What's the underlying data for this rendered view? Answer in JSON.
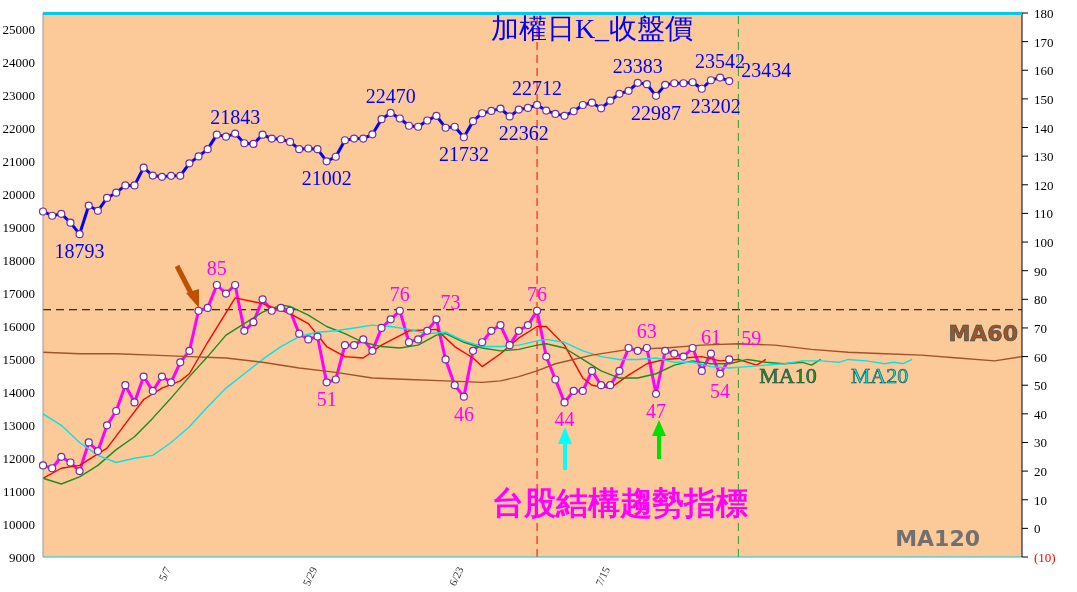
{
  "chart_data": {
    "type": "line",
    "title": "加權日K_收盤價",
    "annotations": [
      "台股結構趨勢指標",
      "MA120"
    ],
    "categories": [
      null,
      null,
      null,
      null,
      null,
      null,
      null,
      null,
      null,
      null,
      null,
      null,
      null,
      null,
      "5/7",
      null,
      null,
      null,
      null,
      null,
      null,
      null,
      null,
      null,
      null,
      null,
      null,
      null,
      null,
      null,
      "5/29",
      null,
      null,
      null,
      null,
      null,
      null,
      null,
      null,
      null,
      null,
      null,
      null,
      null,
      null,
      null,
      "6/23",
      null,
      null,
      null,
      null,
      null,
      null,
      null,
      null,
      null,
      null,
      null,
      null,
      null,
      null,
      null,
      "7/15",
      null,
      null,
      null,
      null,
      null,
      null,
      null,
      null,
      null,
      null,
      null,
      null,
      null,
      null,
      null,
      null,
      null,
      null,
      null,
      null,
      null,
      null,
      null,
      null,
      null,
      null,
      null,
      null,
      null,
      null,
      null,
      null,
      null,
      null,
      null,
      null,
      null,
      null,
      null,
      null,
      null,
      null,
      null,
      null,
      null
    ],
    "ylim": [
      9000,
      25500
    ],
    "yticks": [
      9000,
      10000,
      11000,
      12000,
      13000,
      14000,
      15000,
      16000,
      17000,
      18000,
      19000,
      20000,
      21000,
      22000,
      23000,
      24000,
      25000
    ],
    "y2lim": [
      -10,
      180
    ],
    "y2ticks": [
      {
        "value": -10,
        "label": "(10)"
      },
      0,
      10,
      20,
      30,
      40,
      50,
      60,
      70,
      80,
      90,
      100,
      110,
      120,
      130,
      140,
      150,
      160,
      170,
      180
    ],
    "marker": "circle",
    "line_style": "solid",
    "ref_lines": [
      {
        "axis": "y",
        "value": 16500,
        "color": "#000000",
        "line_style": "dashed"
      }
    ],
    "series": [
      {
        "color": "#0000ff",
        "values": [
          19480,
          19350,
          19410,
          19140,
          18793,
          19660,
          19500,
          19890,
          20050,
          20270,
          20270,
          20810,
          20570,
          20530,
          20560,
          20560,
          20940,
          21150,
          21370,
          21810,
          21750,
          21843,
          21550,
          21530,
          21810,
          21690,
          21670,
          21590,
          21370,
          21390,
          21370,
          21002,
          21140,
          21640,
          21690,
          21690,
          21820,
          22280,
          22470,
          22300,
          22080,
          22050,
          22240,
          22380,
          22020,
          22050,
          21732,
          22220,
          22460,
          22530,
          22600,
          22362,
          22570,
          22620,
          22712,
          22540,
          22440,
          22380,
          22520,
          22710,
          22780,
          22610,
          22840,
          23050,
          23140,
          23383,
          23340,
          22987,
          23320,
          23370,
          23370,
          23400,
          23202,
          23460,
          23542,
          23434,
          null,
          null,
          null,
          null,
          null,
          null,
          null,
          null,
          null,
          null,
          null,
          null,
          null,
          null,
          null,
          null,
          null,
          null,
          null,
          null,
          null,
          null,
          null,
          null,
          null,
          null,
          null,
          null,
          null,
          null,
          null,
          null
        ],
        "value_labels": [
          null,
          null,
          null,
          null,
          "18793",
          null,
          null,
          null,
          null,
          null,
          null,
          null,
          null,
          null,
          null,
          null,
          null,
          null,
          null,
          null,
          null,
          "21843",
          null,
          null,
          null,
          null,
          null,
          null,
          null,
          null,
          null,
          "21002",
          null,
          null,
          null,
          null,
          null,
          null,
          "22470",
          null,
          null,
          null,
          null,
          null,
          null,
          null,
          "21732",
          null,
          null,
          null,
          null,
          "22362",
          null,
          null,
          "22712",
          null,
          null,
          null,
          null,
          null,
          null,
          null,
          null,
          null,
          null,
          "23383",
          null,
          "22987",
          null,
          null,
          null,
          null,
          "23202",
          null,
          "23542",
          "23434",
          null,
          null,
          null,
          null,
          null,
          null,
          null,
          null,
          null,
          null,
          null,
          null,
          null,
          null,
          null,
          null,
          null,
          null,
          null,
          null,
          null,
          null,
          null,
          null,
          null,
          null,
          null,
          null,
          null,
          null,
          null,
          null
        ]
      },
      {
        "color": "#ff00ff",
        "axis": "y2",
        "values": [
          22,
          21,
          25,
          23,
          20,
          30,
          27,
          36,
          41,
          50,
          44,
          53,
          48,
          53,
          51,
          58,
          62,
          76,
          77,
          85,
          82,
          85,
          69,
          72,
          80,
          76,
          77,
          76,
          68,
          66,
          67,
          51,
          52,
          64,
          64,
          66,
          62,
          70,
          73,
          76,
          65,
          66,
          69,
          73,
          59,
          50,
          46,
          62,
          65,
          69,
          71,
          64,
          69,
          71,
          76,
          60,
          52,
          44,
          48,
          48,
          55,
          50,
          50,
          55,
          63,
          62,
          63,
          47,
          62,
          61,
          60,
          63,
          55,
          61,
          54,
          59,
          null,
          null,
          null,
          null,
          null,
          null,
          null,
          null,
          null,
          null,
          null,
          null,
          null,
          null,
          null,
          null,
          null,
          null,
          null,
          null,
          null,
          null,
          null,
          null,
          null,
          null,
          null,
          null,
          null,
          null,
          null,
          null
        ],
        "value_labels": [
          null,
          null,
          null,
          null,
          null,
          null,
          null,
          null,
          null,
          null,
          null,
          null,
          null,
          null,
          null,
          null,
          null,
          null,
          null,
          "85",
          null,
          null,
          null,
          null,
          null,
          null,
          null,
          null,
          null,
          null,
          null,
          "51",
          null,
          null,
          null,
          null,
          null,
          null,
          null,
          "76",
          null,
          null,
          null,
          "73",
          null,
          null,
          "46",
          null,
          null,
          null,
          null,
          null,
          null,
          null,
          "76",
          null,
          null,
          "44",
          null,
          null,
          null,
          null,
          null,
          null,
          null,
          null,
          "63",
          "47",
          null,
          null,
          null,
          null,
          null,
          "61",
          "54",
          "59",
          null,
          null,
          null,
          null,
          null,
          null,
          null,
          null,
          null,
          null,
          null,
          null,
          null,
          null,
          null,
          null,
          null,
          null,
          null,
          null,
          null,
          null,
          null,
          null,
          null,
          null,
          null,
          null,
          null,
          null,
          null,
          null
        ]
      },
      {
        "color": "#ff0000",
        "axis": "y2",
        "marker": "none",
        "values": [
          17.5,
          null,
          21,
          null,
          22,
          24,
          null,
          28,
          null,
          36.5,
          null,
          45,
          null,
          49,
          null,
          51.5,
          54,
          null,
          65,
          null,
          null,
          80.5,
          null,
          null,
          78.5,
          null,
          null,
          75,
          null,
          71.5,
          null,
          63.5,
          null,
          60,
          null,
          59.5,
          null,
          64,
          null,
          null,
          69,
          null,
          null,
          69.5,
          null,
          63.5,
          null,
          59.5,
          56.5,
          null,
          61,
          null,
          66.5,
          null,
          70.5,
          70.5,
          null,
          64,
          null,
          52.5,
          50,
          null,
          49,
          null,
          53.5,
          null,
          57.5,
          null,
          59,
          null,
          59.5,
          null,
          60,
          null,
          58.5,
          null,
          59,
          null,
          57,
          59,
          null,
          null,
          null,
          null,
          null,
          null,
          null,
          null,
          null,
          null,
          null,
          null,
          null,
          null,
          null,
          null,
          null,
          null,
          null,
          null,
          null,
          null,
          null,
          null,
          null,
          null,
          null,
          null
        ]
      },
      {
        "name": "MA10",
        "color": "#1e8c1e",
        "axis": "y2",
        "marker": "none",
        "values": [
          17.5,
          null,
          15.5,
          null,
          18,
          null,
          22,
          null,
          27.5,
          null,
          32,
          null,
          38.5,
          null,
          45.5,
          null,
          53,
          null,
          60,
          null,
          67.5,
          null,
          71.5,
          null,
          75.5,
          null,
          78,
          77.5,
          null,
          74.5,
          null,
          70.5,
          null,
          68,
          null,
          65,
          null,
          63.5,
          null,
          63,
          null,
          64,
          null,
          67.5,
          68,
          null,
          65,
          null,
          63,
          null,
          62,
          null,
          62.5,
          null,
          64,
          64.5,
          null,
          63,
          null,
          59,
          null,
          55,
          null,
          52.5,
          null,
          52.5,
          null,
          54,
          null,
          57,
          null,
          58.5,
          null,
          57.5,
          null,
          57.5,
          null,
          59,
          null,
          58,
          null,
          57.5,
          null,
          58,
          57,
          59,
          null,
          null,
          null,
          null,
          null,
          null,
          null,
          null,
          null,
          null,
          null,
          null,
          null,
          null,
          null,
          null,
          null,
          null,
          null,
          null,
          null,
          null
        ]
      },
      {
        "name": "MA20",
        "color": "#00e5e5",
        "axis": "y2",
        "marker": "none",
        "values": [
          40,
          null,
          36,
          null,
          30,
          null,
          25.5,
          null,
          23,
          null,
          24.5,
          null,
          25.5,
          null,
          30,
          null,
          35.5,
          null,
          42.5,
          null,
          49,
          null,
          54,
          null,
          59,
          null,
          63.5,
          null,
          67,
          null,
          68.5,
          null,
          69,
          null,
          70,
          null,
          71,
          null,
          70.5,
          null,
          69.5,
          null,
          68,
          null,
          68.5,
          null,
          65.5,
          null,
          63.5,
          null,
          63.5,
          null,
          64,
          null,
          65.5,
          66,
          null,
          65,
          null,
          62,
          null,
          60,
          null,
          59,
          null,
          59,
          null,
          59.5,
          null,
          58,
          null,
          58,
          null,
          56.5,
          null,
          56,
          null,
          56.5,
          null,
          57,
          null,
          57.5,
          null,
          58.5,
          null,
          58.5,
          null,
          58,
          59,
          null,
          58.5,
          null,
          57.5,
          58,
          57.5,
          59,
          null,
          null,
          null,
          null,
          null,
          null,
          null,
          null,
          null,
          null,
          null,
          null
        ]
      },
      {
        "name": "MA60",
        "color": "#a0522d",
        "axis": "y2",
        "marker": "none",
        "values": [
          61.5,
          null,
          null,
          null,
          61,
          null,
          null,
          null,
          61,
          null,
          null,
          null,
          60.5,
          null,
          null,
          null,
          60,
          null,
          null,
          null,
          59.5,
          null,
          null,
          null,
          58,
          null,
          null,
          null,
          56,
          null,
          null,
          null,
          54.5,
          null,
          null,
          null,
          52.5,
          null,
          null,
          null,
          52,
          null,
          null,
          null,
          51.5,
          null,
          null,
          null,
          51,
          null,
          51.5,
          null,
          53,
          null,
          55,
          null,
          57.5,
          null,
          null,
          null,
          60.5,
          null,
          null,
          null,
          62.5,
          null,
          null,
          null,
          63,
          null,
          null,
          null,
          64,
          null,
          null,
          null,
          64.5,
          null,
          null,
          null,
          64,
          null,
          null,
          null,
          62.5,
          null,
          null,
          null,
          61.5,
          null,
          null,
          null,
          61,
          null,
          null,
          null,
          60.5,
          null,
          null,
          null,
          59.5,
          null,
          null,
          null,
          58.5,
          null,
          null,
          60
        ]
      }
    ]
  }
}
